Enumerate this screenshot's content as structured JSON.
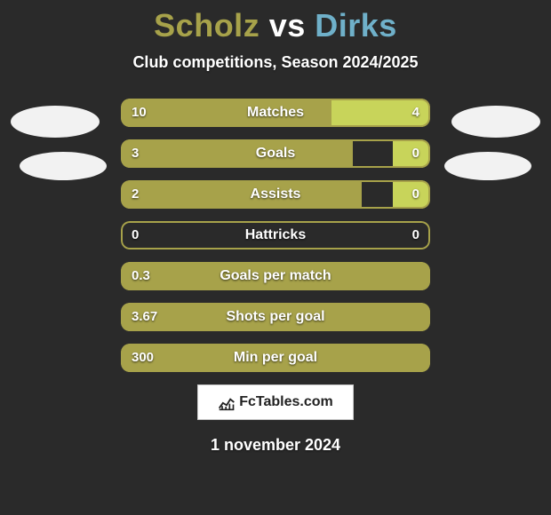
{
  "title": {
    "player1": "Scholz",
    "vs": "vs",
    "player2": "Dirks"
  },
  "subtitle": "Club competitions, Season 2024/2025",
  "colors": {
    "player1_fill": "#a7a24a",
    "player2_fill": "#c8d45a",
    "outline": "#a7a24a",
    "background": "#2a2a2a",
    "player1_title": "#a7a24a",
    "player2_title": "#6fb0c9"
  },
  "rows": [
    {
      "label": "Matches",
      "left_val": "10",
      "right_val": "4",
      "left_pct": 68,
      "right_pct": 32
    },
    {
      "label": "Goals",
      "left_val": "3",
      "right_val": "0",
      "left_pct": 75,
      "right_pct": 12
    },
    {
      "label": "Assists",
      "left_val": "2",
      "right_val": "0",
      "left_pct": 78,
      "right_pct": 12
    },
    {
      "label": "Hattricks",
      "left_val": "0",
      "right_val": "0",
      "left_pct": 0,
      "right_pct": 0
    },
    {
      "label": "Goals per match",
      "left_val": "0.3",
      "right_val": "",
      "left_pct": 100,
      "right_pct": 0
    },
    {
      "label": "Shots per goal",
      "left_val": "3.67",
      "right_val": "",
      "left_pct": 100,
      "right_pct": 0
    },
    {
      "label": "Min per goal",
      "left_val": "300",
      "right_val": "",
      "left_pct": 100,
      "right_pct": 0
    }
  ],
  "logo_text": "FcTables.com",
  "date": "1 november 2024"
}
